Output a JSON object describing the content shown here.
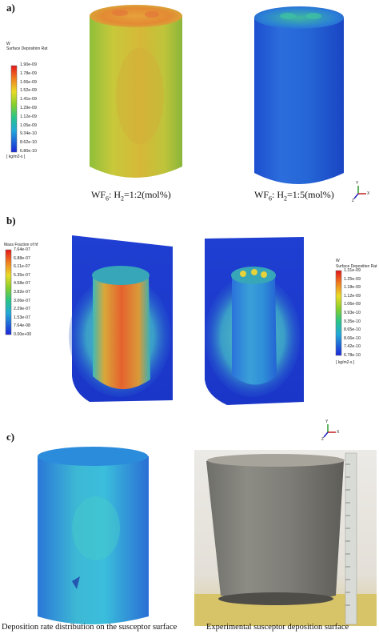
{
  "panels": {
    "a": {
      "label": "a)",
      "legend": {
        "unit_symbol": "W",
        "title": "Surface Deposition Rat",
        "ticks": [
          "1.90e-09",
          "1.78e-09",
          "1.66e-09",
          "1.52e-09",
          "1.41e-09",
          "1.29e-09",
          "1.12e-09",
          "1.05e-09",
          "9.34e-10",
          "8.62e-10",
          "6.80e-10"
        ],
        "units": "[ kg/m2-s ]"
      },
      "captions": [
        {
          "species": "WF",
          "sub": "6",
          "sep": ": H",
          "sub2": "2",
          "ratio": "=1:2(mol%)"
        },
        {
          "species": "WF",
          "sub": "6",
          "sep": ": H",
          "sub2": "2",
          "ratio": "=1:5(mol%)"
        }
      ]
    },
    "b": {
      "label": "b)",
      "legend_left": {
        "title": "Mass Fraction of hf",
        "ticks": [
          "7.64e-07",
          "6.88e-07",
          "6.11e-07",
          "5.35e-07",
          "4.58e-07",
          "3.82e-07",
          "3.06e-07",
          "2.29e-07",
          "1.53e-07",
          "7.64e-08",
          "0.00e+00"
        ]
      },
      "legend_right": {
        "unit_symbol": "W",
        "title": "Surface Deposition Rat",
        "ticks": [
          "1.31e-09",
          "1.25e-09",
          "1.18e-09",
          "1.12e-09",
          "1.06e-09",
          "9.93e-10",
          "9.35e-10",
          "8.65e-10",
          "8.06e-10",
          "7.42e-10",
          "6.78e-10"
        ],
        "units": "[ kg/m2-s ]"
      }
    },
    "c": {
      "label": "c)",
      "captions": [
        "Deposition rate distribution on the susceptor surface",
        "Experimental susceptor deposition surface"
      ]
    }
  },
  "axis_triads": [
    {
      "labels": [
        "Y",
        "X",
        "Z"
      ]
    },
    {
      "labels": [
        "Y",
        "X",
        "Z"
      ]
    }
  ]
}
